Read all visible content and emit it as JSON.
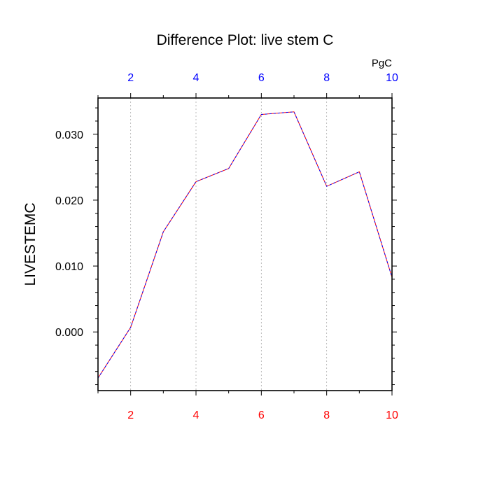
{
  "chart_data": {
    "type": "line",
    "title": "Difference Plot: live stem C",
    "units_label": "PgC",
    "ylabel": "LIVESTEMC",
    "xlabel": "",
    "x": [
      1,
      2,
      3,
      4,
      5,
      6,
      7,
      8,
      9,
      10
    ],
    "series": [
      {
        "values": [
          -0.007,
          0.0007,
          0.0152,
          0.0228,
          0.0248,
          0.033,
          0.0334,
          0.0221,
          0.0243,
          0.0083
        ]
      }
    ],
    "xlim": [
      1,
      10
    ],
    "ylim": [
      -0.0089,
      0.0355
    ],
    "x_ticks": [
      2,
      4,
      6,
      8,
      10
    ],
    "x_tick_labels": [
      "2",
      "4",
      "6",
      "8",
      "10"
    ],
    "y_ticks": [
      0.0,
      0.01,
      0.02,
      0.03
    ],
    "y_tick_labels": [
      "0.000",
      "0.010",
      "0.020",
      "0.030"
    ],
    "grid": "vertical dashed at major x ticks",
    "legend": "none",
    "colors": {
      "bottom_tick_labels": "#ff0000",
      "top_tick_labels": "#0000ff",
      "line_dashes_a": "#ff0000",
      "line_dashes_b": "#0000ff",
      "grid": "#aaaaaa",
      "axes": "#000000"
    }
  }
}
